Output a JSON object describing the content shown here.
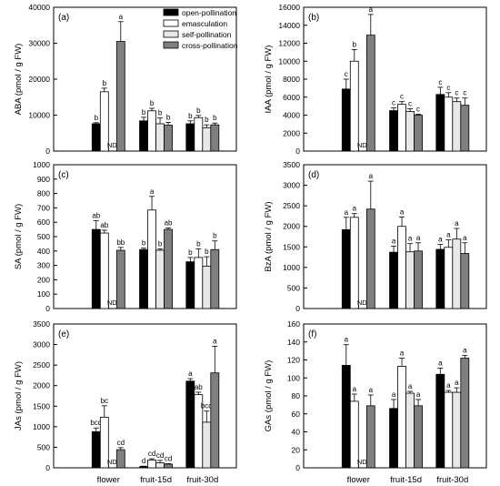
{
  "figure": {
    "legend": [
      {
        "label": "open-pollination",
        "color": "#000000"
      },
      {
        "label": "emasculation",
        "color": "#ffffff"
      },
      {
        "label": "self-pollination",
        "color": "#e8e8e8"
      },
      {
        "label": "cross-pollination",
        "color": "#7f7f7f"
      }
    ]
  },
  "chart_data": [
    {
      "type": "bar",
      "panel": "(a)",
      "ylabel": "ABA (pmol / g FW)",
      "categories": [
        "flower",
        "fruit-15d",
        "fruit-30d"
      ],
      "ylim": [
        0,
        40000
      ],
      "yticks": [
        0,
        10000,
        20000,
        30000,
        40000
      ],
      "series": [
        {
          "name": "open-pollination",
          "values": [
            7600,
            8400,
            7600
          ],
          "errors": [
            300,
            1000,
            800
          ],
          "letters": [
            "b",
            "b",
            "b"
          ]
        },
        {
          "name": "emasculation",
          "values": [
            16500,
            11200,
            9300
          ],
          "errors": [
            1000,
            700,
            600
          ],
          "letters": [
            "b",
            "b",
            "b"
          ]
        },
        {
          "name": "self-pollination",
          "values": [
            null,
            7600,
            6500
          ],
          "errors": [
            null,
            1600,
            800
          ],
          "letters": [
            "ND",
            "b",
            "b"
          ]
        },
        {
          "name": "cross-pollination",
          "values": [
            30500,
            7200,
            7300
          ],
          "errors": [
            5500,
            800,
            500
          ],
          "letters": [
            "a",
            "b",
            "b"
          ]
        }
      ]
    },
    {
      "type": "bar",
      "panel": "(b)",
      "ylabel": "IAA (pmol / g FW)",
      "categories": [
        "flower",
        "fruit-15d",
        "fruit-30d"
      ],
      "ylim": [
        0,
        16000
      ],
      "yticks": [
        0,
        2000,
        4000,
        6000,
        8000,
        10000,
        12000,
        14000,
        16000
      ],
      "series": [
        {
          "name": "open-pollination",
          "values": [
            6900,
            4500,
            6300
          ],
          "errors": [
            1100,
            300,
            800
          ],
          "letters": [
            "c",
            "c",
            "c"
          ]
        },
        {
          "name": "emasculation",
          "values": [
            10000,
            5200,
            6000
          ],
          "errors": [
            1300,
            300,
            500
          ],
          "letters": [
            "b",
            "c",
            "c"
          ]
        },
        {
          "name": "self-pollination",
          "values": [
            null,
            4400,
            5500
          ],
          "errors": [
            null,
            300,
            400
          ],
          "letters": [
            "ND",
            "c",
            "c"
          ]
        },
        {
          "name": "cross-pollination",
          "values": [
            12900,
            4000,
            5100
          ],
          "errors": [
            2300,
            100,
            800
          ],
          "letters": [
            "a",
            "c",
            "c"
          ]
        }
      ]
    },
    {
      "type": "bar",
      "panel": "(c)",
      "ylabel": "SA (pmol / g FW)",
      "categories": [
        "flower",
        "fruit-15d",
        "fruit-30d"
      ],
      "ylim": [
        0,
        1000
      ],
      "yticks": [
        0,
        100,
        200,
        300,
        400,
        500,
        600,
        700,
        800,
        900,
        1000
      ],
      "series": [
        {
          "name": "open-pollination",
          "values": [
            550,
            410,
            325
          ],
          "errors": [
            60,
            10,
            30
          ],
          "letters": [
            "ab",
            "b",
            "b"
          ]
        },
        {
          "name": "emasculation",
          "values": [
            525,
            685,
            355
          ],
          "errors": [
            20,
            95,
            60
          ],
          "letters": [
            "ab",
            "a",
            "b"
          ]
        },
        {
          "name": "self-pollination",
          "values": [
            null,
            405,
            295
          ],
          "errors": [
            null,
            10,
            65
          ],
          "letters": [
            "ND",
            "b",
            "b"
          ]
        },
        {
          "name": "cross-pollination",
          "values": [
            405,
            550,
            410
          ],
          "errors": [
            20,
            10,
            60
          ],
          "letters": [
            "bb",
            "ab",
            "b"
          ]
        }
      ]
    },
    {
      "type": "bar",
      "panel": "(d)",
      "ylabel": "BzA (pmol / g FW)",
      "categories": [
        "flower",
        "fruit-15d",
        "fruit-30d"
      ],
      "ylim": [
        0,
        3500
      ],
      "yticks": [
        0,
        500,
        1000,
        1500,
        2000,
        2500,
        3000,
        3500
      ],
      "series": [
        {
          "name": "open-pollination",
          "values": [
            1920,
            1370,
            1440
          ],
          "errors": [
            300,
            150,
            120
          ],
          "letters": [
            "a",
            "a",
            "a"
          ]
        },
        {
          "name": "emasculation",
          "values": [
            2220,
            2000,
            1490
          ],
          "errors": [
            90,
            230,
            180
          ],
          "letters": [
            "a",
            "a",
            "a"
          ]
        },
        {
          "name": "self-pollination",
          "values": [
            null,
            1380,
            1690
          ],
          "errors": [
            null,
            200,
            260
          ],
          "letters": [
            "ND",
            "a",
            "a"
          ]
        },
        {
          "name": "cross-pollination",
          "values": [
            2420,
            1400,
            1340
          ],
          "errors": [
            680,
            200,
            260
          ],
          "letters": [
            "a",
            "a",
            "a"
          ]
        }
      ]
    },
    {
      "type": "bar",
      "panel": "(e)",
      "ylabel": "JAs (pmol / g FW)",
      "categories": [
        "flower",
        "fruit-15d",
        "fruit-30d"
      ],
      "ylim": [
        0,
        3500
      ],
      "yticks": [
        0,
        500,
        1000,
        1500,
        2000,
        2500,
        3000,
        3500
      ],
      "series": [
        {
          "name": "open-pollination",
          "values": [
            880,
            30,
            2110
          ],
          "errors": [
            90,
            10,
            60
          ],
          "letters": [
            "bcd",
            "d",
            "a"
          ]
        },
        {
          "name": "emasculation",
          "values": [
            1230,
            190,
            1780
          ],
          "errors": [
            280,
            30,
            60
          ],
          "letters": [
            "bc",
            "cd",
            "ab"
          ]
        },
        {
          "name": "self-pollination",
          "values": [
            null,
            120,
            1110
          ],
          "errors": [
            null,
            60,
            270
          ],
          "letters": [
            "ND",
            "cd",
            "bcd"
          ]
        },
        {
          "name": "cross-pollination",
          "values": [
            440,
            90,
            2310
          ],
          "errors": [
            50,
            10,
            650
          ],
          "letters": [
            "cd",
            "cd",
            "a"
          ]
        }
      ]
    },
    {
      "type": "bar",
      "panel": "(f)",
      "ylabel": "GAs (pmol / g FW)",
      "categories": [
        "flower",
        "fruit-15d",
        "fruit-30d"
      ],
      "ylim": [
        0,
        160
      ],
      "yticks": [
        0,
        20,
        40,
        60,
        80,
        100,
        120,
        140,
        160
      ],
      "series": [
        {
          "name": "open-pollination",
          "values": [
            114,
            66,
            104
          ],
          "errors": [
            23,
            10,
            7
          ],
          "letters": [
            "a",
            "a",
            "a"
          ]
        },
        {
          "name": "emasculation",
          "values": [
            74,
            113,
            84
          ],
          "errors": [
            8,
            9,
            2
          ],
          "letters": [
            "a",
            "a",
            "a"
          ]
        },
        {
          "name": "self-pollination",
          "values": [
            null,
            83,
            84
          ],
          "errors": [
            null,
            2,
            5
          ],
          "letters": [
            "ND",
            "a",
            "a"
          ]
        },
        {
          "name": "cross-pollination",
          "values": [
            69,
            69,
            122
          ],
          "errors": [
            12,
            7,
            3
          ],
          "letters": [
            "a",
            "a",
            "a"
          ]
        }
      ]
    }
  ]
}
